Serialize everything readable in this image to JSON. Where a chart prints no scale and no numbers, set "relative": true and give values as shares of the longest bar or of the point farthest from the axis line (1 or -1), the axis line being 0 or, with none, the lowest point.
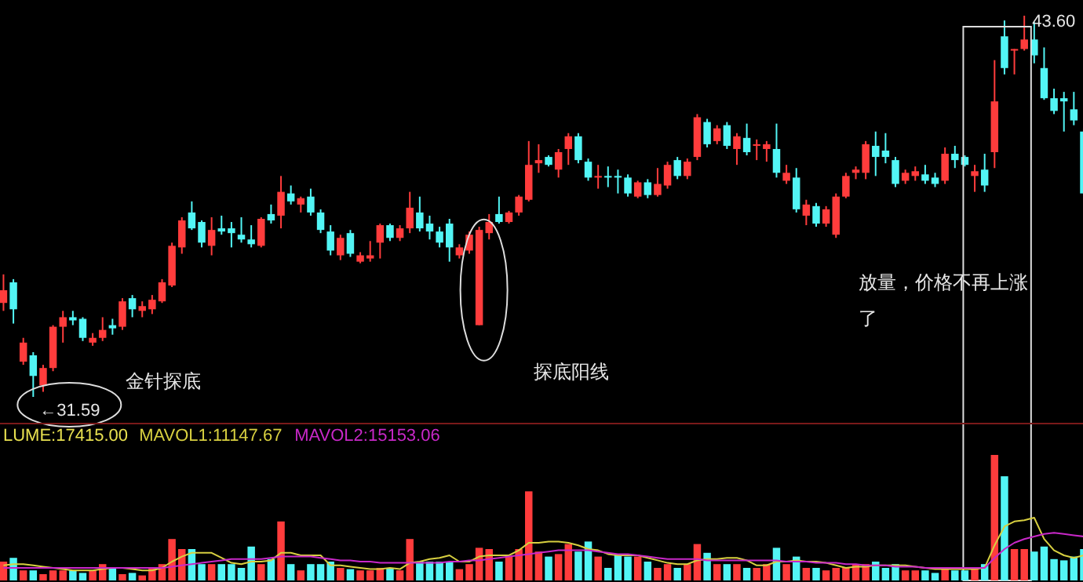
{
  "chart_data": [
    {
      "type": "candlestick",
      "categories": [
        null,
        null,
        null,
        null,
        null,
        null,
        null,
        null,
        null,
        null,
        null,
        null,
        null,
        null,
        null,
        null,
        null,
        null,
        null,
        null,
        null,
        null,
        null,
        null,
        null,
        null,
        null,
        null,
        null,
        null,
        null,
        null,
        null,
        null,
        null,
        null,
        null,
        null,
        null,
        null,
        null,
        null,
        null,
        null,
        null,
        null,
        null,
        null,
        null,
        null,
        null,
        null,
        null,
        null,
        null,
        null,
        null,
        null,
        null,
        null,
        null,
        null,
        null,
        null,
        null,
        null,
        null,
        null,
        null,
        null,
        null,
        null,
        null,
        null,
        null,
        null,
        null,
        null,
        null,
        null,
        null,
        null,
        null,
        null,
        null,
        null,
        null,
        null,
        null,
        null,
        null,
        null,
        null,
        null,
        null,
        null,
        null,
        null,
        null,
        null,
        null,
        null,
        null,
        null,
        null,
        null,
        null,
        null,
        null,
        null
      ],
      "ohlc": [
        [
          34.55,
          35.45,
          34.3,
          34.95
        ],
        [
          35.2,
          35.3,
          33.9,
          34.35
        ],
        [
          32.7,
          33.45,
          32.6,
          33.3
        ],
        [
          32.9,
          33.0,
          31.59,
          32.25
        ],
        [
          31.95,
          32.6,
          31.75,
          32.5
        ],
        [
          32.5,
          33.85,
          32.4,
          33.8
        ],
        [
          33.8,
          34.3,
          33.3,
          34.1
        ],
        [
          34.1,
          34.3,
          33.85,
          34.0
        ],
        [
          34.05,
          34.1,
          33.35,
          33.45
        ],
        [
          33.3,
          33.6,
          33.2,
          33.45
        ],
        [
          33.45,
          34.1,
          33.35,
          33.7
        ],
        [
          33.85,
          34.05,
          33.55,
          33.75
        ],
        [
          33.8,
          34.7,
          33.7,
          34.6
        ],
        [
          34.7,
          34.8,
          34.1,
          34.35
        ],
        [
          34.3,
          34.6,
          34.1,
          34.45
        ],
        [
          34.35,
          34.8,
          34.2,
          34.65
        ],
        [
          34.6,
          35.3,
          34.55,
          35.2
        ],
        [
          35.1,
          36.45,
          35.05,
          36.35
        ],
        [
          36.3,
          37.25,
          36.1,
          37.15
        ],
        [
          37.4,
          37.75,
          36.85,
          36.9
        ],
        [
          37.1,
          37.15,
          36.3,
          36.45
        ],
        [
          36.35,
          37.25,
          36.05,
          36.85
        ],
        [
          36.9,
          37.3,
          36.7,
          36.8
        ],
        [
          36.9,
          37.1,
          36.3,
          36.75
        ],
        [
          36.7,
          37.25,
          36.45,
          36.55
        ],
        [
          36.55,
          37.0,
          36.3,
          36.4
        ],
        [
          36.35,
          37.25,
          36.3,
          37.2
        ],
        [
          37.35,
          37.65,
          37.05,
          37.15
        ],
        [
          37.3,
          38.55,
          36.9,
          38.05
        ],
        [
          38.0,
          38.25,
          37.65,
          37.75
        ],
        [
          37.65,
          37.9,
          37.4,
          37.85
        ],
        [
          37.9,
          38.15,
          37.3,
          37.4
        ],
        [
          37.4,
          37.5,
          36.75,
          36.85
        ],
        [
          36.8,
          37.0,
          36.05,
          36.2
        ],
        [
          36.05,
          36.7,
          35.9,
          36.6
        ],
        [
          36.75,
          36.85,
          36.0,
          36.1
        ],
        [
          35.85,
          36.15,
          35.8,
          36.05
        ],
        [
          35.95,
          36.5,
          35.85,
          36.05
        ],
        [
          36.45,
          37.05,
          35.95,
          37.0
        ],
        [
          37.0,
          37.05,
          36.5,
          36.6
        ],
        [
          36.6,
          37.0,
          36.5,
          36.9
        ],
        [
          36.9,
          38.05,
          36.75,
          37.55
        ],
        [
          37.4,
          37.9,
          36.8,
          36.9
        ],
        [
          37.05,
          37.3,
          36.55,
          36.8
        ],
        [
          36.8,
          36.95,
          36.3,
          36.45
        ],
        [
          37.05,
          37.2,
          35.85,
          36.3
        ],
        [
          36.05,
          36.4,
          35.95,
          36.3
        ],
        [
          36.2,
          36.8,
          36.1,
          36.7
        ],
        [
          33.85,
          36.95,
          33.85,
          36.85
        ],
        [
          36.75,
          37.35,
          36.55,
          37.1
        ],
        [
          37.35,
          37.9,
          37.05,
          37.1
        ],
        [
          37.1,
          37.45,
          37.05,
          37.4
        ],
        [
          37.4,
          37.95,
          37.3,
          37.9
        ],
        [
          37.8,
          39.65,
          37.75,
          38.9
        ],
        [
          38.95,
          39.55,
          38.65,
          39.05
        ],
        [
          39.15,
          39.2,
          38.85,
          38.9
        ],
        [
          38.75,
          39.4,
          38.5,
          39.3
        ],
        [
          39.4,
          39.9,
          38.9,
          39.8
        ],
        [
          39.8,
          39.9,
          38.95,
          39.05
        ],
        [
          39.0,
          39.1,
          38.4,
          38.5
        ],
        [
          38.5,
          38.9,
          38.15,
          38.55
        ],
        [
          38.55,
          38.85,
          38.2,
          38.5
        ],
        [
          38.55,
          38.75,
          38.0,
          38.5
        ],
        [
          38.5,
          38.6,
          37.9,
          38.0
        ],
        [
          37.9,
          38.4,
          37.85,
          38.35
        ],
        [
          38.35,
          38.45,
          37.85,
          37.95
        ],
        [
          37.95,
          38.8,
          37.9,
          38.3
        ],
        [
          38.25,
          39.0,
          38.15,
          38.9
        ],
        [
          39.05,
          39.15,
          38.45,
          38.55
        ],
        [
          38.55,
          39.1,
          38.45,
          39.0
        ],
        [
          39.15,
          40.5,
          39.05,
          40.4
        ],
        [
          40.25,
          40.35,
          39.45,
          39.55
        ],
        [
          39.65,
          40.15,
          39.55,
          40.05
        ],
        [
          40.15,
          40.25,
          39.4,
          39.5
        ],
        [
          39.4,
          39.9,
          38.9,
          39.8
        ],
        [
          39.75,
          40.2,
          39.2,
          39.3
        ],
        [
          39.5,
          39.7,
          39.05,
          39.55
        ],
        [
          39.4,
          39.65,
          39.0,
          39.55
        ],
        [
          39.4,
          40.2,
          38.5,
          38.65
        ],
        [
          38.4,
          38.9,
          38.3,
          38.65
        ],
        [
          38.5,
          38.8,
          37.4,
          37.5
        ],
        [
          37.3,
          37.8,
          37.0,
          37.65
        ],
        [
          37.6,
          37.7,
          36.95,
          37.05
        ],
        [
          37.05,
          37.6,
          36.95,
          37.5
        ],
        [
          36.7,
          38.0,
          36.6,
          37.9
        ],
        [
          37.9,
          38.65,
          37.85,
          38.55
        ],
        [
          38.65,
          38.85,
          38.45,
          38.75
        ],
        [
          38.65,
          39.65,
          38.45,
          39.55
        ],
        [
          39.5,
          39.95,
          38.55,
          39.15
        ],
        [
          39.35,
          39.9,
          38.95,
          39.15
        ],
        [
          39.05,
          39.15,
          38.2,
          38.3
        ],
        [
          38.4,
          38.75,
          38.3,
          38.65
        ],
        [
          38.55,
          38.85,
          38.4,
          38.7
        ],
        [
          38.6,
          38.9,
          38.3,
          38.4
        ],
        [
          38.5,
          38.65,
          38.2,
          38.3
        ],
        [
          38.4,
          39.45,
          38.3,
          39.25
        ],
        [
          39.25,
          39.5,
          38.8,
          39.05
        ],
        [
          39.15,
          39.2,
          38.85,
          38.9
        ],
        [
          38.55,
          38.9,
          38.05,
          38.7
        ],
        [
          38.75,
          39.25,
          38.05,
          38.25
        ],
        [
          39.3,
          42.2,
          38.8,
          40.9
        ],
        [
          42.95,
          43.45,
          41.75,
          41.95
        ],
        [
          42.5,
          42.55,
          41.75,
          42.55
        ],
        [
          42.55,
          43.6,
          42.5,
          42.85
        ],
        [
          42.85,
          43.4,
          42.1,
          42.35
        ],
        [
          41.95,
          42.6,
          40.95,
          41.0
        ],
        [
          41.0,
          41.3,
          40.5,
          40.6
        ],
        [
          41.0,
          41.2,
          39.95,
          40.9
        ],
        [
          40.65,
          41.2,
          40.15,
          40.3
        ],
        [
          39.95,
          40.05,
          37.95,
          38.0
        ]
      ],
      "colors": [
        "#ff3c3c",
        "#52f5f5",
        "#ff3c3c",
        "#52f5f5",
        "#ff3c3c",
        "#ff3c3c",
        "#ff3c3c",
        "#52f5f5",
        "#52f5f5",
        "#ff3c3c",
        "#ff3c3c",
        "#52f5f5",
        "#ff3c3c",
        "#52f5f5",
        "#ff3c3c",
        "#ff3c3c",
        "#ff3c3c",
        "#ff3c3c",
        "#ff3c3c",
        "#52f5f5",
        "#52f5f5",
        "#ff3c3c",
        "#52f5f5",
        "#52f5f5",
        "#52f5f5",
        "#52f5f5",
        "#ff3c3c",
        "#52f5f5",
        "#ff3c3c",
        "#52f5f5",
        "#ff3c3c",
        "#52f5f5",
        "#52f5f5",
        "#52f5f5",
        "#ff3c3c",
        "#52f5f5",
        "#ff3c3c",
        "#ff3c3c",
        "#ff3c3c",
        "#52f5f5",
        "#ff3c3c",
        "#ff3c3c",
        "#52f5f5",
        "#52f5f5",
        "#52f5f5",
        "#52f5f5",
        "#ff3c3c",
        "#ff3c3c",
        "#ff3c3c",
        "#ff3c3c",
        "#52f5f5",
        "#ff3c3c",
        "#ff3c3c",
        "#ff3c3c",
        "#ff3c3c",
        "#52f5f5",
        "#ff3c3c",
        "#ff3c3c",
        "#52f5f5",
        "#52f5f5",
        "#ff3c3c",
        "#52f5f5",
        "#52f5f5",
        "#52f5f5",
        "#ff3c3c",
        "#52f5f5",
        "#ff3c3c",
        "#ff3c3c",
        "#52f5f5",
        "#ff3c3c",
        "#ff3c3c",
        "#52f5f5",
        "#ff3c3c",
        "#52f5f5",
        "#ff3c3c",
        "#52f5f5",
        "#ff3c3c",
        "#ff3c3c",
        "#52f5f5",
        "#ff3c3c",
        "#52f5f5",
        "#ff3c3c",
        "#52f5f5",
        "#ff3c3c",
        "#ff3c3c",
        "#ff3c3c",
        "#ff3c3c",
        "#ff3c3c",
        "#52f5f5",
        "#52f5f5",
        "#52f5f5",
        "#ff3c3c",
        "#ff3c3c",
        "#52f5f5",
        "#52f5f5",
        "#ff3c3c",
        "#52f5f5",
        "#52f5f5",
        "#ff3c3c",
        "#52f5f5",
        "#ff3c3c",
        "#52f5f5",
        "#ff3c3c",
        "#ff3c3c",
        "#52f5f5",
        "#52f5f5",
        "#52f5f5",
        "#52f5f5",
        "#52f5f5",
        "#52f5f5"
      ],
      "annotations": [
        "←31.59",
        "43.60",
        "金针探底",
        "探底阳线",
        "放量，价格不再上涨了"
      ]
    },
    {
      "type": "bar",
      "relative": true,
      "legend": "top left",
      "annotations": [
        "LUME:17415.00"
      ],
      "categories": [
        null,
        null,
        null,
        null,
        null,
        null,
        null,
        null,
        null,
        null,
        null,
        null,
        null,
        null,
        null,
        null,
        null,
        null,
        null,
        null,
        null,
        null,
        null,
        null,
        null,
        null,
        null,
        null,
        null,
        null,
        null,
        null,
        null,
        null,
        null,
        null,
        null,
        null,
        null,
        null,
        null,
        null,
        null,
        null,
        null,
        null,
        null,
        null,
        null,
        null,
        null,
        null,
        null,
        null,
        null,
        null,
        null,
        null,
        null,
        null,
        null,
        null,
        null,
        null,
        null,
        null,
        null,
        null,
        null,
        null,
        null,
        null,
        null,
        null,
        null,
        null,
        null,
        null,
        null,
        null,
        null,
        null,
        null,
        null,
        null,
        null,
        null,
        null,
        null,
        null,
        null,
        null,
        null,
        null,
        null,
        null,
        null,
        null,
        null,
        null,
        null,
        null,
        null,
        null,
        null,
        null,
        null,
        null,
        null,
        null
      ],
      "series": [
        {
          "type": "bar",
          "colors": [
            "#ff3c3c",
            "#52f5f5",
            "#ff3c3c",
            "#52f5f5",
            "#ff3c3c",
            "#ff3c3c",
            "#ff3c3c",
            "#52f5f5",
            "#52f5f5",
            "#ff3c3c",
            "#ff3c3c",
            "#52f5f5",
            "#ff3c3c",
            "#52f5f5",
            "#ff3c3c",
            "#ff3c3c",
            "#ff3c3c",
            "#ff3c3c",
            "#ff3c3c",
            "#52f5f5",
            "#52f5f5",
            "#ff3c3c",
            "#52f5f5",
            "#52f5f5",
            "#52f5f5",
            "#52f5f5",
            "#ff3c3c",
            "#52f5f5",
            "#ff3c3c",
            "#52f5f5",
            "#ff3c3c",
            "#52f5f5",
            "#52f5f5",
            "#52f5f5",
            "#ff3c3c",
            "#52f5f5",
            "#ff3c3c",
            "#ff3c3c",
            "#ff3c3c",
            "#52f5f5",
            "#ff3c3c",
            "#ff3c3c",
            "#52f5f5",
            "#52f5f5",
            "#52f5f5",
            "#52f5f5",
            "#ff3c3c",
            "#ff3c3c",
            "#ff3c3c",
            "#ff3c3c",
            "#52f5f5",
            "#ff3c3c",
            "#ff3c3c",
            "#ff3c3c",
            "#ff3c3c",
            "#52f5f5",
            "#ff3c3c",
            "#ff3c3c",
            "#52f5f5",
            "#52f5f5",
            "#ff3c3c",
            "#52f5f5",
            "#52f5f5",
            "#52f5f5",
            "#ff3c3c",
            "#52f5f5",
            "#ff3c3c",
            "#ff3c3c",
            "#52f5f5",
            "#ff3c3c",
            "#ff3c3c",
            "#52f5f5",
            "#ff3c3c",
            "#52f5f5",
            "#ff3c3c",
            "#52f5f5",
            "#ff3c3c",
            "#ff3c3c",
            "#52f5f5",
            "#ff3c3c",
            "#52f5f5",
            "#ff3c3c",
            "#52f5f5",
            "#ff3c3c",
            "#ff3c3c",
            "#ff3c3c",
            "#ff3c3c",
            "#ff3c3c",
            "#52f5f5",
            "#52f5f5",
            "#52f5f5",
            "#ff3c3c",
            "#ff3c3c",
            "#52f5f5",
            "#52f5f5",
            "#ff3c3c",
            "#52f5f5",
            "#52f5f5",
            "#ff3c3c",
            "#52f5f5",
            "#ff3c3c",
            "#52f5f5",
            "#ff3c3c",
            "#ff3c3c",
            "#52f5f5",
            "#52f5f5",
            "#52f5f5",
            "#52f5f5",
            "#52f5f5",
            "#52f5f5"
          ],
          "values": [
            0.15,
            0.18,
            0.08,
            0.08,
            0.05,
            0.08,
            0.08,
            0.08,
            0.06,
            0.08,
            0.13,
            0.1,
            0.05,
            0.06,
            0.04,
            0.1,
            0.13,
            0.33,
            0.25,
            0.25,
            0.13,
            0.13,
            0.13,
            0.13,
            0.1,
            0.27,
            0.13,
            0.17,
            0.47,
            0.13,
            0.08,
            0.13,
            0.13,
            0.15,
            0.1,
            0.09,
            0.08,
            0.08,
            0.1,
            0.1,
            0.08,
            0.33,
            0.15,
            0.15,
            0.15,
            0.15,
            0.09,
            0.13,
            0.26,
            0.25,
            0.15,
            0.19,
            0.25,
            0.71,
            0.23,
            0.19,
            0.21,
            0.29,
            0.23,
            0.31,
            0.19,
            0.1,
            0.21,
            0.19,
            0.19,
            0.15,
            0.1,
            0.13,
            0.1,
            0.13,
            0.29,
            0.22,
            0.13,
            0.13,
            0.13,
            0.1,
            0.1,
            0.13,
            0.26,
            0.13,
            0.19,
            0.1,
            0.1,
            0.08,
            0.1,
            0.1,
            0.13,
            0.13,
            0.15,
            0.1,
            0.13,
            0.08,
            0.08,
            0.08,
            0.06,
            0.1,
            0.08,
            0.08,
            0.1,
            0.13,
            1,
            0.83,
            0.25,
            0.25,
            0.23,
            0.27,
            0.17,
            0.16,
            0.19,
            0.25
          ]
        },
        {
          "name": "MAVOL1:11147.67",
          "type": "line",
          "color": "#d8d040",
          "values": [
            0.12,
            0.13,
            0.13,
            0.12,
            0.11,
            0.1,
            0.09,
            0.08,
            0.08,
            0.08,
            0.09,
            0.1,
            0.1,
            0.09,
            0.08,
            0.08,
            0.1,
            0.15,
            0.19,
            0.22,
            0.22,
            0.22,
            0.18,
            0.14,
            0.13,
            0.15,
            0.15,
            0.16,
            0.22,
            0.22,
            0.2,
            0.2,
            0.2,
            0.12,
            0.12,
            0.11,
            0.1,
            0.09,
            0.09,
            0.1,
            0.09,
            0.14,
            0.15,
            0.17,
            0.18,
            0.2,
            0.15,
            0.15,
            0.19,
            0.2,
            0.2,
            0.2,
            0.24,
            0.3,
            0.3,
            0.31,
            0.31,
            0.3,
            0.28,
            0.25,
            0.24,
            0.21,
            0.2,
            0.2,
            0.2,
            0.18,
            0.16,
            0.14,
            0.13,
            0.13,
            0.16,
            0.17,
            0.17,
            0.18,
            0.18,
            0.16,
            0.12,
            0.12,
            0.15,
            0.15,
            0.16,
            0.15,
            0.15,
            0.14,
            0.12,
            0.1,
            0.11,
            0.11,
            0.12,
            0.12,
            0.12,
            0.12,
            0.11,
            0.1,
            0.09,
            0.09,
            0.09,
            0.09,
            0.09,
            0.1,
            0.28,
            0.43,
            0.47,
            0.48,
            0.5,
            0.33,
            0.24,
            0.2,
            0.18,
            0.2
          ]
        },
        {
          "name": "MAVOL2:15153.06",
          "type": "line",
          "color": "#c828c8",
          "values": [
            0.1,
            0.1,
            0.1,
            0.1,
            0.1,
            0.1,
            0.1,
            0.1,
            0.1,
            0.1,
            0.1,
            0.1,
            0.1,
            0.1,
            0.1,
            0.1,
            0.1,
            0.11,
            0.12,
            0.13,
            0.14,
            0.15,
            0.16,
            0.17,
            0.17,
            0.17,
            0.17,
            0.18,
            0.19,
            0.19,
            0.19,
            0.19,
            0.18,
            0.17,
            0.16,
            0.16,
            0.15,
            0.15,
            0.14,
            0.14,
            0.14,
            0.14,
            0.14,
            0.14,
            0.14,
            0.15,
            0.15,
            0.16,
            0.16,
            0.17,
            0.18,
            0.19,
            0.2,
            0.21,
            0.22,
            0.23,
            0.24,
            0.24,
            0.24,
            0.24,
            0.23,
            0.22,
            0.21,
            0.21,
            0.2,
            0.19,
            0.18,
            0.17,
            0.17,
            0.17,
            0.17,
            0.16,
            0.16,
            0.16,
            0.16,
            0.16,
            0.16,
            0.16,
            0.16,
            0.15,
            0.15,
            0.15,
            0.14,
            0.14,
            0.14,
            0.13,
            0.13,
            0.12,
            0.12,
            0.12,
            0.11,
            0.11,
            0.11,
            0.1,
            0.1,
            0.1,
            0.1,
            0.1,
            0.1,
            0.1,
            0.18,
            0.25,
            0.3,
            0.33,
            0.35,
            0.37,
            0.38,
            0.37,
            0.36,
            0.35
          ]
        }
      ]
    }
  ]
}
